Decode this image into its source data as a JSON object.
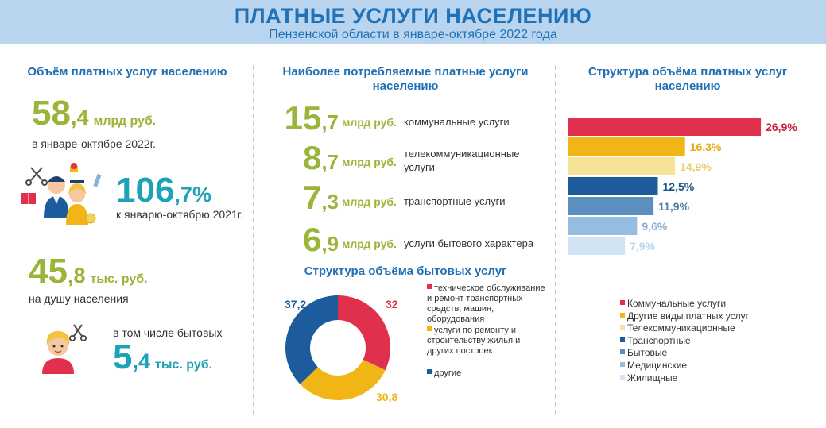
{
  "header": {
    "title": "ПЛАТНЫЕ УСЛУГИ НАСЕЛЕНИЮ",
    "subtitle": "Пензенской области в январе-октябре 2022 года"
  },
  "left": {
    "section_title": "Объём платных услуг населению",
    "volume": {
      "int": "58",
      "dec": ",4",
      "unit": "млрд руб.",
      "caption": "в январе-октябре 2022г."
    },
    "growth": {
      "int": "106",
      "dec": ",7%",
      "caption": "к январю-октябрю 2021г."
    },
    "per_capita": {
      "int": "45",
      "dec": ",8",
      "unit": "тыс. руб.",
      "caption": "на душу населения"
    },
    "household": {
      "caption": "в том числе бытовых",
      "int": "5",
      "dec": ",4",
      "unit": "тыс. руб."
    }
  },
  "middle": {
    "section_title_1": "Наиболее потребляемые платные услуги",
    "section_title_2": "населению",
    "services": [
      {
        "int": "15",
        "dec": ",7",
        "unit": "млрд руб.",
        "label_1": "коммунальные услуги",
        "label_2": ""
      },
      {
        "int": "8",
        "dec": ",7",
        "unit": "млрд руб.",
        "label_1": "телекоммуникационные",
        "label_2": "услуги"
      },
      {
        "int": "7",
        "dec": ",3",
        "unit": "млрд руб.",
        "label_1": "транспортные услуги",
        "label_2": ""
      },
      {
        "int": "6",
        "dec": ",9",
        "unit": "млрд руб.",
        "label_1": "услуги бытового характера",
        "label_2": ""
      }
    ],
    "donut_title": "Структура объёма бытовых услуг",
    "donut_legend": [
      {
        "lines": [
          "техническое обслуживание",
          "и ремонт транспортных",
          "средств, машин,",
          "оборудования"
        ],
        "color": "#e0304e"
      },
      {
        "lines": [
          "услуги по ремонту и",
          "строительству жилья и",
          "других построек"
        ],
        "color": "#f2b516"
      },
      {
        "lines": [
          "другие"
        ],
        "color": "#1d5c9c"
      }
    ]
  },
  "right": {
    "section_title_1": "Структура объёма платных услуг",
    "section_title_2": "населению"
  },
  "chart_data": [
    {
      "type": "bar",
      "title": "Структура объёма платных услуг населению",
      "orientation": "horizontal",
      "categories": [
        "Коммунальные услуги",
        "Другие виды платных услуг",
        "Телекоммуникационные",
        "Транспортные",
        "Бытовые",
        "Медицинские",
        "Жилищные"
      ],
      "values": [
        26.9,
        16.3,
        14.9,
        12.5,
        11.9,
        9.6,
        7.9
      ],
      "labels": [
        "26,9%",
        "16,3%",
        "14,9%",
        "12,5%",
        "11,9%",
        "9,6%",
        "7,9%"
      ],
      "colors": [
        "#e0304e",
        "#f2b516",
        "#f5e39a",
        "#1d5c9c",
        "#5b8fbd",
        "#94bde0",
        "#cfe3f5"
      ],
      "label_colors": [
        "#c8203e",
        "#e9a90f",
        "#e8cf6a",
        "#1d4f88",
        "#4d7ea8",
        "#86aed3",
        "#b8d4ee"
      ],
      "legend": "bottom",
      "xlim": [
        0,
        30
      ]
    },
    {
      "type": "pie",
      "title": "Структура объёма бытовых услуг",
      "hole": true,
      "categories": [
        "техническое обслуживание и ремонт транспортных средств, машин, оборудования",
        "услуги по ремонту и строительству жилья и других построек",
        "другие"
      ],
      "values": [
        32,
        30.8,
        37.2
      ],
      "labels": [
        "32",
        "30,8",
        "37,2"
      ],
      "colors": [
        "#e0304e",
        "#f2b516",
        "#1d5c9c"
      ]
    }
  ]
}
